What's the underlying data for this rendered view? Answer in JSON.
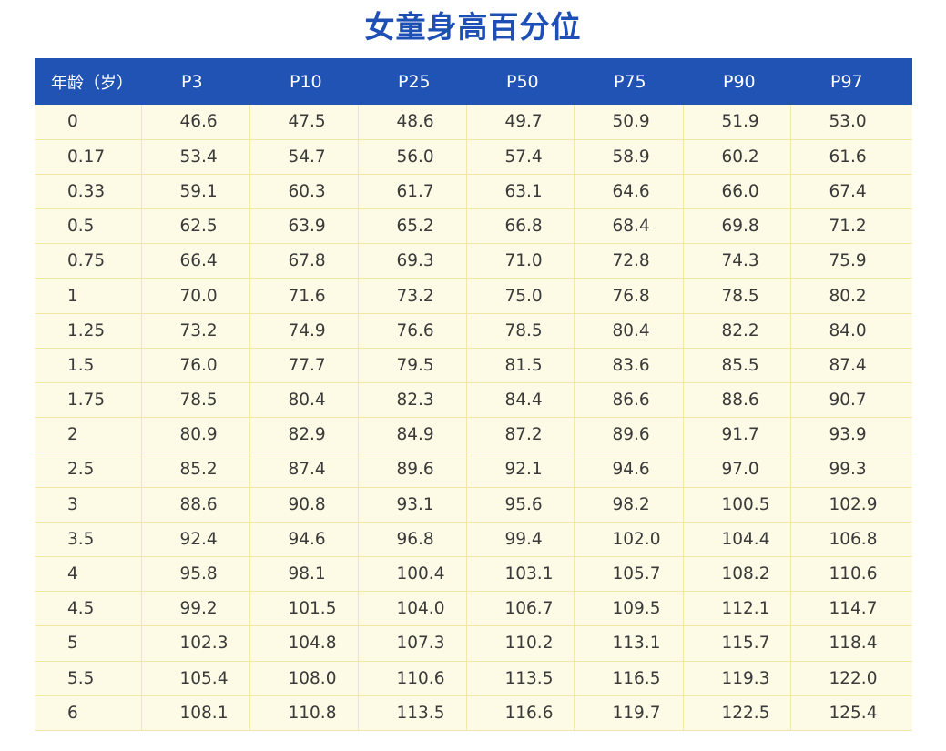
{
  "title": "女童身高百分位",
  "table": {
    "headers": [
      "年龄（岁）",
      "P3",
      "P10",
      "P25",
      "P50",
      "P75",
      "P90",
      "P97"
    ],
    "rows": [
      [
        "0",
        "46.6",
        "47.5",
        "48.6",
        "49.7",
        "50.9",
        "51.9",
        "53.0"
      ],
      [
        "0.17",
        "53.4",
        "54.7",
        "56.0",
        "57.4",
        "58.9",
        "60.2",
        "61.6"
      ],
      [
        "0.33",
        "59.1",
        "60.3",
        "61.7",
        "63.1",
        "64.6",
        "66.0",
        "67.4"
      ],
      [
        "0.5",
        "62.5",
        "63.9",
        "65.2",
        "66.8",
        "68.4",
        "69.8",
        "71.2"
      ],
      [
        "0.75",
        "66.4",
        "67.8",
        "69.3",
        "71.0",
        "72.8",
        "74.3",
        "75.9"
      ],
      [
        "1",
        "70.0",
        "71.6",
        "73.2",
        "75.0",
        "76.8",
        "78.5",
        "80.2"
      ],
      [
        "1.25",
        "73.2",
        "74.9",
        "76.6",
        "78.5",
        "80.4",
        "82.2",
        "84.0"
      ],
      [
        "1.5",
        "76.0",
        "77.7",
        "79.5",
        "81.5",
        "83.6",
        "85.5",
        "87.4"
      ],
      [
        "1.75",
        "78.5",
        "80.4",
        "82.3",
        "84.4",
        "86.6",
        "88.6",
        "90.7"
      ],
      [
        "2",
        "80.9",
        "82.9",
        "84.9",
        "87.2",
        "89.6",
        "91.7",
        "93.9"
      ],
      [
        "2.5",
        "85.2",
        "87.4",
        "89.6",
        "92.1",
        "94.6",
        "97.0",
        "99.3"
      ],
      [
        "3",
        "88.6",
        "90.8",
        "93.1",
        "95.6",
        "98.2",
        "100.5",
        "102.9"
      ],
      [
        "3.5",
        "92.4",
        "94.6",
        "96.8",
        "99.4",
        "102.0",
        "104.4",
        "106.8"
      ],
      [
        "4",
        "95.8",
        "98.1",
        "100.4",
        "103.1",
        "105.7",
        "108.2",
        "110.6"
      ],
      [
        "4.5",
        "99.2",
        "101.5",
        "104.0",
        "106.7",
        "109.5",
        "112.1",
        "114.7"
      ],
      [
        "5",
        "102.3",
        "104.8",
        "107.3",
        "110.2",
        "113.1",
        "115.7",
        "118.4"
      ],
      [
        "5.5",
        "105.4",
        "108.0",
        "110.6",
        "113.5",
        "116.5",
        "119.3",
        "122.0"
      ],
      [
        "6",
        "108.1",
        "110.8",
        "113.5",
        "116.6",
        "119.7",
        "122.5",
        "125.4"
      ]
    ]
  },
  "colors": {
    "title": "#1d4fb4",
    "header_bg": "#2153b4",
    "header_text": "#ffffff",
    "row_bg": "#fdfbe5",
    "grid": "#f2e6a8",
    "cell_text": "#3a3a3a"
  }
}
